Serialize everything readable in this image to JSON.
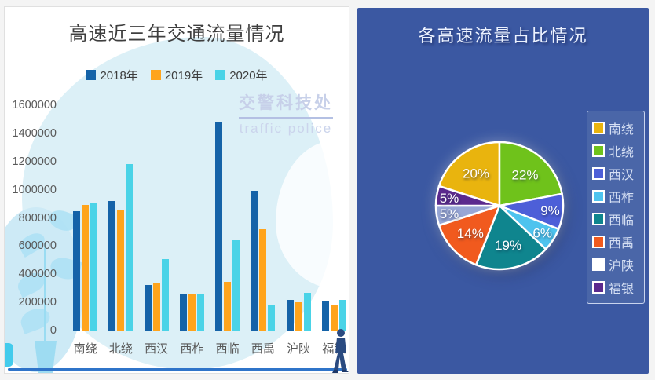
{
  "left_panel": {
    "title": "高速近三年交通流量情况",
    "watermark_cn": "交警科技处",
    "watermark_en": "traffic police"
  },
  "right_panel": {
    "title": "各高速流量占比情况"
  },
  "chart_data": [
    {
      "type": "bar",
      "title": "高速近三年交通流量情况",
      "categories": [
        "南绕",
        "北绕",
        "西汉",
        "西柞",
        "西临",
        "西禹",
        "沪陕",
        "福银"
      ],
      "series": [
        {
          "name": "2018年",
          "color": "#1563A8",
          "values": [
            850000,
            920000,
            325000,
            260000,
            1480000,
            990000,
            220000,
            210000
          ]
        },
        {
          "name": "2019年",
          "color": "#FFA41C",
          "values": [
            890000,
            860000,
            340000,
            255000,
            345000,
            720000,
            200000,
            180000
          ]
        },
        {
          "name": "2020年",
          "color": "#4AD3E7",
          "values": [
            910000,
            1180000,
            510000,
            260000,
            640000,
            180000,
            270000,
            220000
          ]
        }
      ],
      "ylabel": "",
      "xlabel": "",
      "ylim": [
        0,
        1600000
      ],
      "yticks": [
        1600000,
        1400000,
        1200000,
        1000000,
        800000,
        600000,
        400000,
        200000,
        0
      ],
      "grid": false,
      "legend_position": "top"
    },
    {
      "type": "pie",
      "title": "各高速流量占比情况",
      "start_angle_deg": 288,
      "legend_position": "right",
      "slices": [
        {
          "label": "南绕",
          "percent": 20,
          "color": "#E9B40E",
          "swatch": "#E9B40E"
        },
        {
          "label": "北绕",
          "percent": 22,
          "color": "#6FC21B",
          "swatch": "#6FC21B"
        },
        {
          "label": "西汉",
          "percent": 9,
          "color": "#4D5FD8",
          "swatch": "#4D5FD8"
        },
        {
          "label": "西柞",
          "percent": 6,
          "color": "#4EC3EE",
          "swatch": "#4EC3EE"
        },
        {
          "label": "西临",
          "percent": 19,
          "color": "#0F858E",
          "swatch": "#0F858E"
        },
        {
          "label": "西禹",
          "percent": 14,
          "color": "#F15A1E",
          "swatch": "#F15A1E"
        },
        {
          "label": "沪陕",
          "percent": 5,
          "color": "#98A7D6",
          "swatch": "#FFFFFF"
        },
        {
          "label": "福银",
          "percent": 5,
          "color": "#5B2A8E",
          "swatch": "#5B2A8E"
        }
      ]
    }
  ]
}
